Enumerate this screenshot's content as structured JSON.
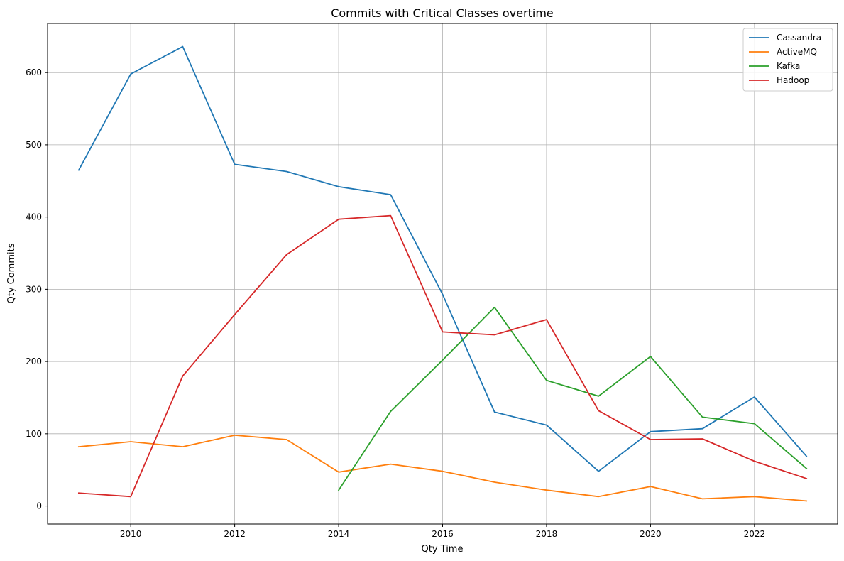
{
  "chart_data": {
    "type": "line",
    "title": "Commits with Critical Classes overtime",
    "xlabel": "Qty Time",
    "ylabel": "Qty Commits",
    "xlim": [
      2008.4,
      2023.6
    ],
    "ylim": [
      -25,
      668
    ],
    "xticks": [
      2010,
      2012,
      2014,
      2016,
      2018,
      2020,
      2022
    ],
    "yticks": [
      0,
      100,
      200,
      300,
      400,
      500,
      600
    ],
    "grid": true,
    "legend_position": "top-right",
    "series": [
      {
        "name": "Cassandra",
        "color": "#1f77b4",
        "x": [
          2009,
          2010,
          2011,
          2012,
          2013,
          2014,
          2015,
          2016,
          2017,
          2018,
          2019,
          2020,
          2021,
          2022,
          2023
        ],
        "values": [
          465,
          598,
          636,
          473,
          463,
          442,
          431,
          293,
          130,
          112,
          48,
          103,
          107,
          151,
          69
        ]
      },
      {
        "name": "ActiveMQ",
        "color": "#ff7f0e",
        "x": [
          2009,
          2010,
          2011,
          2012,
          2013,
          2014,
          2015,
          2016,
          2017,
          2018,
          2019,
          2020,
          2021,
          2022,
          2023
        ],
        "values": [
          82,
          89,
          82,
          98,
          92,
          47,
          58,
          48,
          33,
          22,
          13,
          27,
          10,
          13,
          7
        ]
      },
      {
        "name": "Kafka",
        "color": "#2ca02c",
        "x": [
          2014,
          2015,
          2016,
          2017,
          2018,
          2019,
          2020,
          2021,
          2022,
          2023
        ],
        "values": [
          22,
          131,
          202,
          275,
          174,
          152,
          207,
          123,
          114,
          52
        ]
      },
      {
        "name": "Hadoop",
        "color": "#d62728",
        "x": [
          2009,
          2010,
          2011,
          2012,
          2013,
          2014,
          2015,
          2016,
          2017,
          2018,
          2019,
          2020,
          2021,
          2022,
          2023
        ],
        "values": [
          18,
          13,
          180,
          265,
          348,
          397,
          402,
          241,
          237,
          258,
          132,
          92,
          93,
          62,
          38
        ]
      }
    ]
  }
}
